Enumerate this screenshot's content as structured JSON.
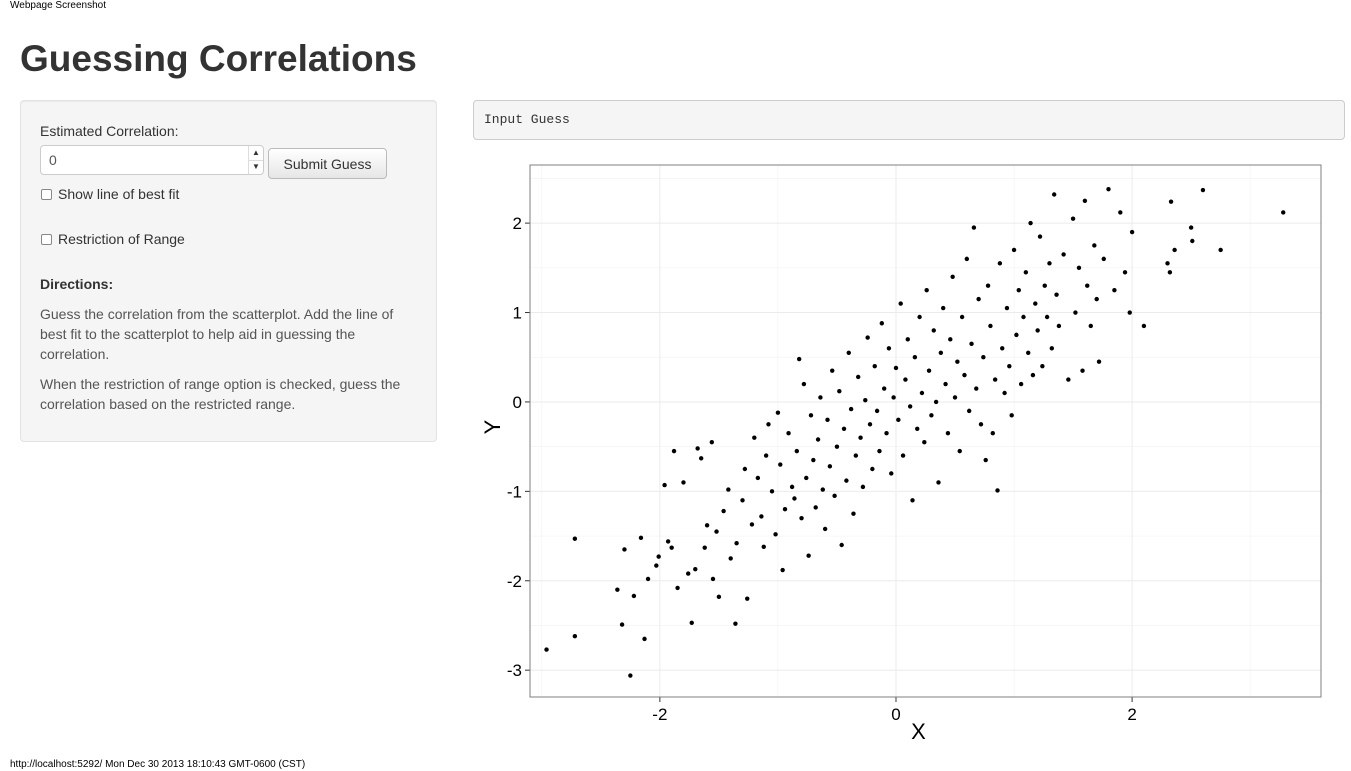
{
  "caption": "Webpage Screenshot",
  "title": "Guessing Correlations",
  "sidebar": {
    "estimate_label": "Estimated Correlation:",
    "estimate_value": "0",
    "submit_label": "Submit Guess",
    "show_fit_label": "Show line of best fit",
    "restriction_label": "Restriction of Range",
    "directions_heading": "Directions:",
    "directions_p1": "Guess the correlation from the scatterplot. Add the line of best fit to the scatterplot to help aid in guessing the correlation.",
    "directions_p2": "When the restriction of range option is checked, guess the correlation based on the restricted range."
  },
  "guess_box": "Input Guess",
  "status": "http://localhost:5292/ Mon Dec 30 2013 18:10:43 GMT-0600 (CST)",
  "chart_data": {
    "type": "scatter",
    "title": "",
    "xlabel": "X",
    "ylabel": "Y",
    "xlim": [
      -3.1,
      3.6
    ],
    "ylim": [
      -3.3,
      2.65
    ],
    "xticks": [
      "-2",
      "0",
      "2"
    ],
    "yticks": [
      "-3",
      "-2",
      "-1",
      "0",
      "1",
      "2"
    ],
    "grid": true,
    "point_color": "#000000",
    "points": [
      [
        -2.96,
        -2.77
      ],
      [
        -2.72,
        -2.62
      ],
      [
        -2.72,
        -1.53
      ],
      [
        -2.36,
        -2.1
      ],
      [
        -2.32,
        -2.49
      ],
      [
        -2.3,
        -1.65
      ],
      [
        -2.25,
        -3.06
      ],
      [
        -2.22,
        -2.17
      ],
      [
        -2.16,
        -1.52
      ],
      [
        -2.13,
        -2.65
      ],
      [
        -2.1,
        -1.98
      ],
      [
        -2.03,
        -1.83
      ],
      [
        -2.01,
        -1.73
      ],
      [
        -1.96,
        -0.93
      ],
      [
        -1.93,
        -1.56
      ],
      [
        -1.9,
        -1.63
      ],
      [
        -1.88,
        -0.55
      ],
      [
        -1.85,
        -2.08
      ],
      [
        -1.8,
        -0.9
      ],
      [
        -1.76,
        -1.92
      ],
      [
        -1.73,
        -2.47
      ],
      [
        -1.7,
        -1.87
      ],
      [
        -1.68,
        -0.52
      ],
      [
        -1.65,
        -0.63
      ],
      [
        -1.62,
        -1.63
      ],
      [
        -1.6,
        -1.38
      ],
      [
        -1.56,
        -0.45
      ],
      [
        -1.55,
        -1.98
      ],
      [
        -1.52,
        -1.45
      ],
      [
        -1.5,
        -2.18
      ],
      [
        -1.46,
        -1.22
      ],
      [
        -1.42,
        -0.98
      ],
      [
        -1.4,
        -1.75
      ],
      [
        -1.36,
        -2.48
      ],
      [
        -1.35,
        -1.58
      ],
      [
        -1.3,
        -1.1
      ],
      [
        -1.28,
        -0.75
      ],
      [
        -1.26,
        -2.2
      ],
      [
        -1.22,
        -1.37
      ],
      [
        -1.2,
        -0.4
      ],
      [
        -1.17,
        -0.85
      ],
      [
        -1.14,
        -1.28
      ],
      [
        -1.12,
        -1.62
      ],
      [
        -1.1,
        -0.6
      ],
      [
        -1.08,
        -0.25
      ],
      [
        -1.05,
        -1.0
      ],
      [
        -1.02,
        -1.48
      ],
      [
        -1.0,
        -0.12
      ],
      [
        -0.98,
        -0.7
      ],
      [
        -0.96,
        -1.88
      ],
      [
        -0.94,
        -1.2
      ],
      [
        -0.91,
        -0.35
      ],
      [
        -0.88,
        -0.95
      ],
      [
        -0.86,
        -1.08
      ],
      [
        -0.84,
        -0.55
      ],
      [
        -0.82,
        0.48
      ],
      [
        -0.8,
        -1.3
      ],
      [
        -0.78,
        0.2
      ],
      [
        -0.76,
        -0.85
      ],
      [
        -0.74,
        -1.72
      ],
      [
        -0.72,
        -0.15
      ],
      [
        -0.7,
        -0.65
      ],
      [
        -0.68,
        -1.18
      ],
      [
        -0.66,
        -0.42
      ],
      [
        -0.64,
        0.05
      ],
      [
        -0.62,
        -0.98
      ],
      [
        -0.6,
        -1.42
      ],
      [
        -0.58,
        -0.2
      ],
      [
        -0.56,
        -0.72
      ],
      [
        -0.54,
        0.35
      ],
      [
        -0.52,
        -1.05
      ],
      [
        -0.5,
        -0.5
      ],
      [
        -0.48,
        0.12
      ],
      [
        -0.46,
        -1.6
      ],
      [
        -0.44,
        -0.3
      ],
      [
        -0.42,
        -0.88
      ],
      [
        -0.4,
        0.55
      ],
      [
        -0.38,
        -0.08
      ],
      [
        -0.36,
        -1.25
      ],
      [
        -0.34,
        -0.6
      ],
      [
        -0.32,
        0.28
      ],
      [
        -0.3,
        -0.4
      ],
      [
        -0.28,
        -0.95
      ],
      [
        -0.26,
        0.02
      ],
      [
        -0.24,
        0.72
      ],
      [
        -0.22,
        -0.25
      ],
      [
        -0.2,
        -0.75
      ],
      [
        -0.18,
        0.4
      ],
      [
        -0.16,
        -0.1
      ],
      [
        -0.14,
        -0.55
      ],
      [
        -0.12,
        0.88
      ],
      [
        -0.1,
        0.15
      ],
      [
        -0.08,
        -0.35
      ],
      [
        -0.06,
        0.6
      ],
      [
        -0.04,
        -0.8
      ],
      [
        -0.02,
        0.05
      ],
      [
        0.0,
        0.38
      ],
      [
        0.02,
        -0.2
      ],
      [
        0.04,
        1.1
      ],
      [
        0.06,
        -0.6
      ],
      [
        0.08,
        0.25
      ],
      [
        0.1,
        0.7
      ],
      [
        0.12,
        -0.05
      ],
      [
        0.14,
        -1.1
      ],
      [
        0.16,
        0.5
      ],
      [
        0.18,
        -0.3
      ],
      [
        0.2,
        0.95
      ],
      [
        0.22,
        0.1
      ],
      [
        0.24,
        -0.45
      ],
      [
        0.26,
        1.25
      ],
      [
        0.28,
        0.35
      ],
      [
        0.3,
        -0.15
      ],
      [
        0.32,
        0.8
      ],
      [
        0.34,
        0.0
      ],
      [
        0.36,
        -0.9
      ],
      [
        0.38,
        0.55
      ],
      [
        0.4,
        1.05
      ],
      [
        0.42,
        0.2
      ],
      [
        0.44,
        -0.35
      ],
      [
        0.46,
        0.7
      ],
      [
        0.48,
        1.4
      ],
      [
        0.5,
        0.05
      ],
      [
        0.52,
        0.45
      ],
      [
        0.54,
        -0.55
      ],
      [
        0.56,
        0.95
      ],
      [
        0.58,
        0.3
      ],
      [
        0.6,
        1.6
      ],
      [
        0.62,
        -0.1
      ],
      [
        0.64,
        0.65
      ],
      [
        0.66,
        1.95
      ],
      [
        0.68,
        0.15
      ],
      [
        0.7,
        1.15
      ],
      [
        0.72,
        -0.25
      ],
      [
        0.74,
        0.5
      ],
      [
        0.76,
        -0.65
      ],
      [
        0.78,
        1.3
      ],
      [
        0.8,
        0.85
      ],
      [
        0.82,
        -0.35
      ],
      [
        0.84,
        0.25
      ],
      [
        0.86,
        -0.99
      ],
      [
        0.88,
        1.55
      ],
      [
        0.9,
        0.6
      ],
      [
        0.92,
        0.1
      ],
      [
        0.94,
        1.05
      ],
      [
        0.96,
        0.4
      ],
      [
        0.98,
        -0.15
      ],
      [
        1.0,
        1.7
      ],
      [
        1.02,
        0.75
      ],
      [
        1.04,
        1.25
      ],
      [
        1.06,
        0.2
      ],
      [
        1.08,
        0.95
      ],
      [
        1.1,
        1.45
      ],
      [
        1.12,
        0.55
      ],
      [
        1.14,
        2.0
      ],
      [
        1.16,
        0.3
      ],
      [
        1.18,
        1.1
      ],
      [
        1.2,
        0.8
      ],
      [
        1.22,
        1.85
      ],
      [
        1.24,
        0.4
      ],
      [
        1.26,
        1.3
      ],
      [
        1.28,
        0.95
      ],
      [
        1.3,
        1.55
      ],
      [
        1.32,
        0.6
      ],
      [
        1.34,
        2.32
      ],
      [
        1.36,
        1.2
      ],
      [
        1.38,
        0.85
      ],
      [
        1.42,
        1.65
      ],
      [
        1.46,
        0.25
      ],
      [
        1.5,
        2.05
      ],
      [
        1.52,
        1.0
      ],
      [
        1.55,
        1.5
      ],
      [
        1.58,
        0.35
      ],
      [
        1.6,
        2.25
      ],
      [
        1.62,
        1.3
      ],
      [
        1.65,
        0.85
      ],
      [
        1.68,
        1.75
      ],
      [
        1.7,
        1.15
      ],
      [
        1.72,
        0.45
      ],
      [
        1.76,
        1.6
      ],
      [
        1.8,
        2.38
      ],
      [
        1.85,
        1.25
      ],
      [
        1.9,
        2.12
      ],
      [
        1.94,
        1.45
      ],
      [
        1.98,
        1.0
      ],
      [
        2.0,
        1.9
      ],
      [
        2.1,
        0.85
      ],
      [
        2.3,
        1.55
      ],
      [
        2.32,
        1.45
      ],
      [
        2.33,
        2.24
      ],
      [
        2.36,
        1.7
      ],
      [
        2.5,
        1.95
      ],
      [
        2.51,
        1.8
      ],
      [
        2.6,
        2.37
      ],
      [
        2.75,
        1.7
      ],
      [
        3.28,
        2.12
      ]
    ]
  }
}
